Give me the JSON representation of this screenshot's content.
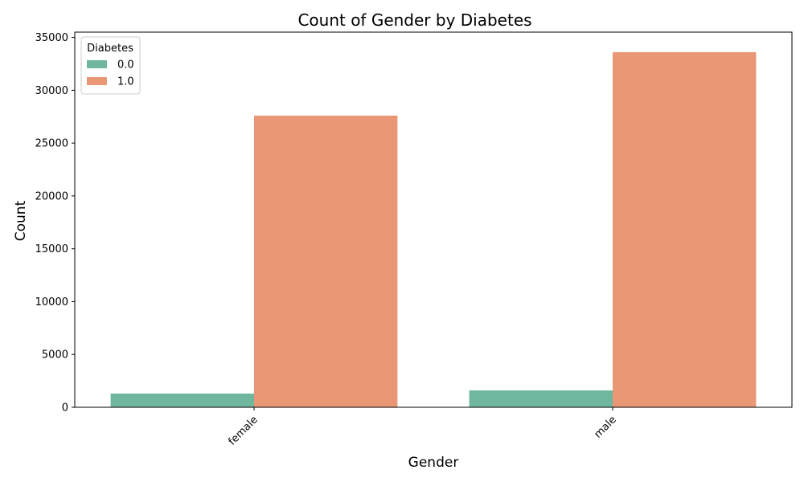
{
  "chart_data": {
    "type": "bar",
    "title": "Count of Gender by Diabetes",
    "xlabel": "Gender",
    "ylabel": "Count",
    "categories": [
      "female",
      "male"
    ],
    "series": [
      {
        "name": "0.0",
        "color": "#6fb79e",
        "values": [
          1300,
          1600
        ]
      },
      {
        "name": "1.0",
        "color": "#ea9775",
        "values": [
          27600,
          33600
        ]
      }
    ],
    "ylim": [
      0,
      35500
    ],
    "yticks": [
      0,
      5000,
      10000,
      15000,
      20000,
      25000,
      30000,
      35000
    ],
    "ytick_labels": [
      "0",
      "5000",
      "10000",
      "15000",
      "20000",
      "25000",
      "30000",
      "35000"
    ],
    "grid": false,
    "legend": {
      "title": "Diabetes",
      "position": "top-left"
    }
  }
}
